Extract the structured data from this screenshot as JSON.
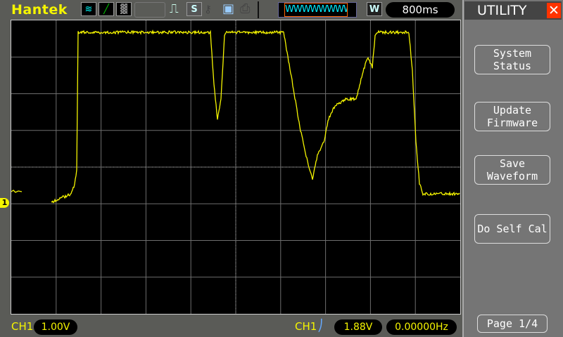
{
  "header": {
    "brand": "Hantek",
    "timebase": "800ms",
    "mode_badge": "W",
    "menu_title": "UTILITY",
    "close_icon": "close-icon",
    "stop_badge": "S"
  },
  "icons": [
    "waveform-channels-icon",
    "ramp-icon",
    "persistence-icon",
    "pulse-icon",
    "run-stop-icon",
    "key-icon",
    "save-disk-icon",
    "printer-icon",
    "memory-position-icon"
  ],
  "menu": {
    "items": [
      {
        "line1": "System",
        "line2": "Status"
      },
      {
        "line1": "Update",
        "line2": "Firmware"
      },
      {
        "line1": "Save",
        "line2": "Waveform"
      },
      {
        "line1": "Do Self Cal",
        "line2": ""
      }
    ],
    "page": "Page 1/4"
  },
  "status": {
    "ch_label": "CH1",
    "volts_div": "1.00V",
    "trigger_ch": "CH1",
    "trigger_level": "1.88V",
    "frequency": "0.00000Hz",
    "trigger_slope": "rising"
  },
  "channel_marker": "1",
  "colors": {
    "trace": "#f5f500",
    "grid": "#6e6e6e",
    "accent_close": "#ff3300",
    "memory_bar": "#00e5ff"
  }
}
